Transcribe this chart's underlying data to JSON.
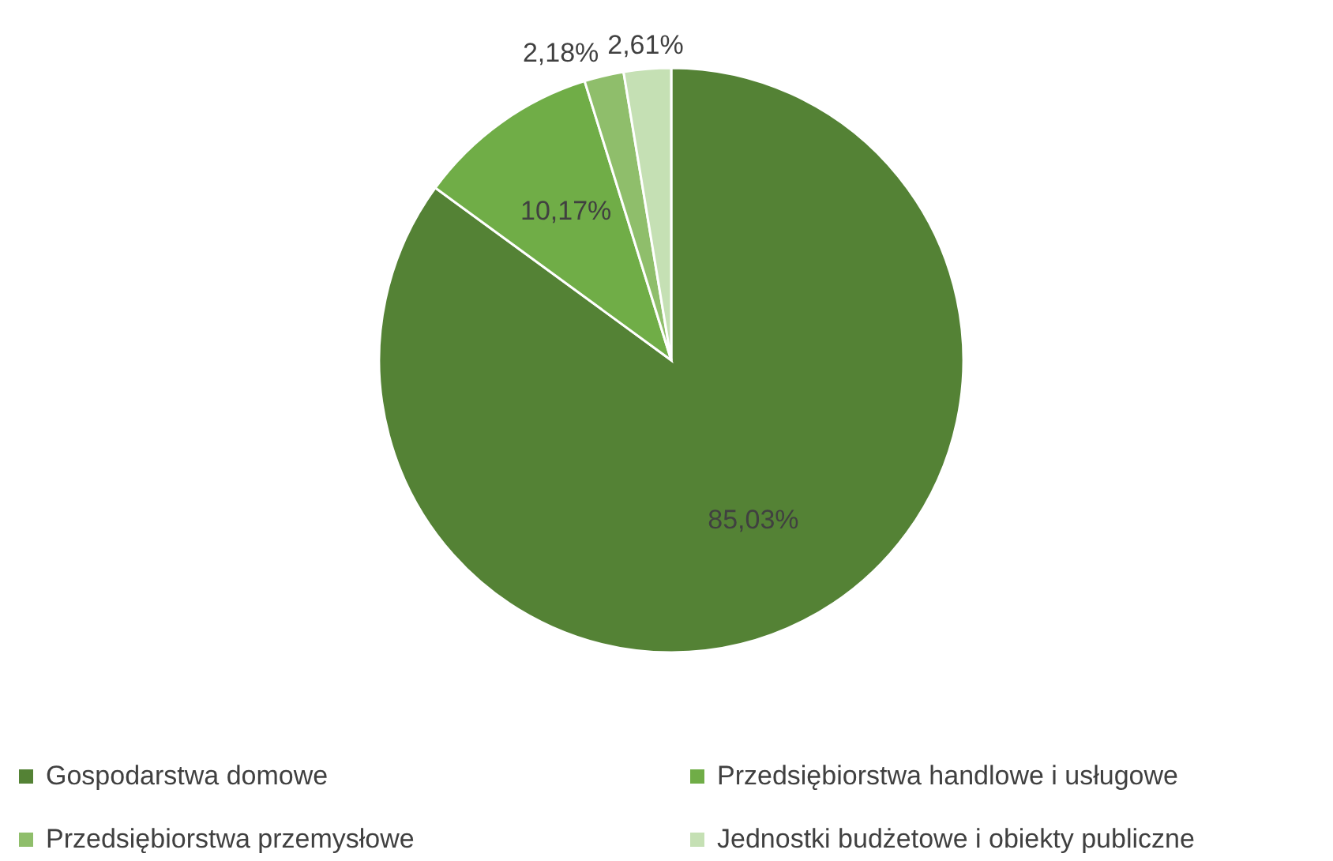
{
  "chart_data": {
    "type": "pie",
    "categories": [
      "Gospodarstwa domowe",
      "Przedsiębiorstwa handlowe i usługowe",
      "Przedsiębiorstwa przemysłowe",
      "Jednostki budżetowe i obiekty publiczne"
    ],
    "values": [
      85.03,
      10.17,
      2.18,
      2.61
    ],
    "colors": [
      "#548235",
      "#70ad47",
      "#8fbe6b",
      "#c5e0b4"
    ],
    "value_labels": [
      "85,03%",
      "10,17%",
      "2,18%",
      "2,61%"
    ],
    "legend": "bottom"
  }
}
